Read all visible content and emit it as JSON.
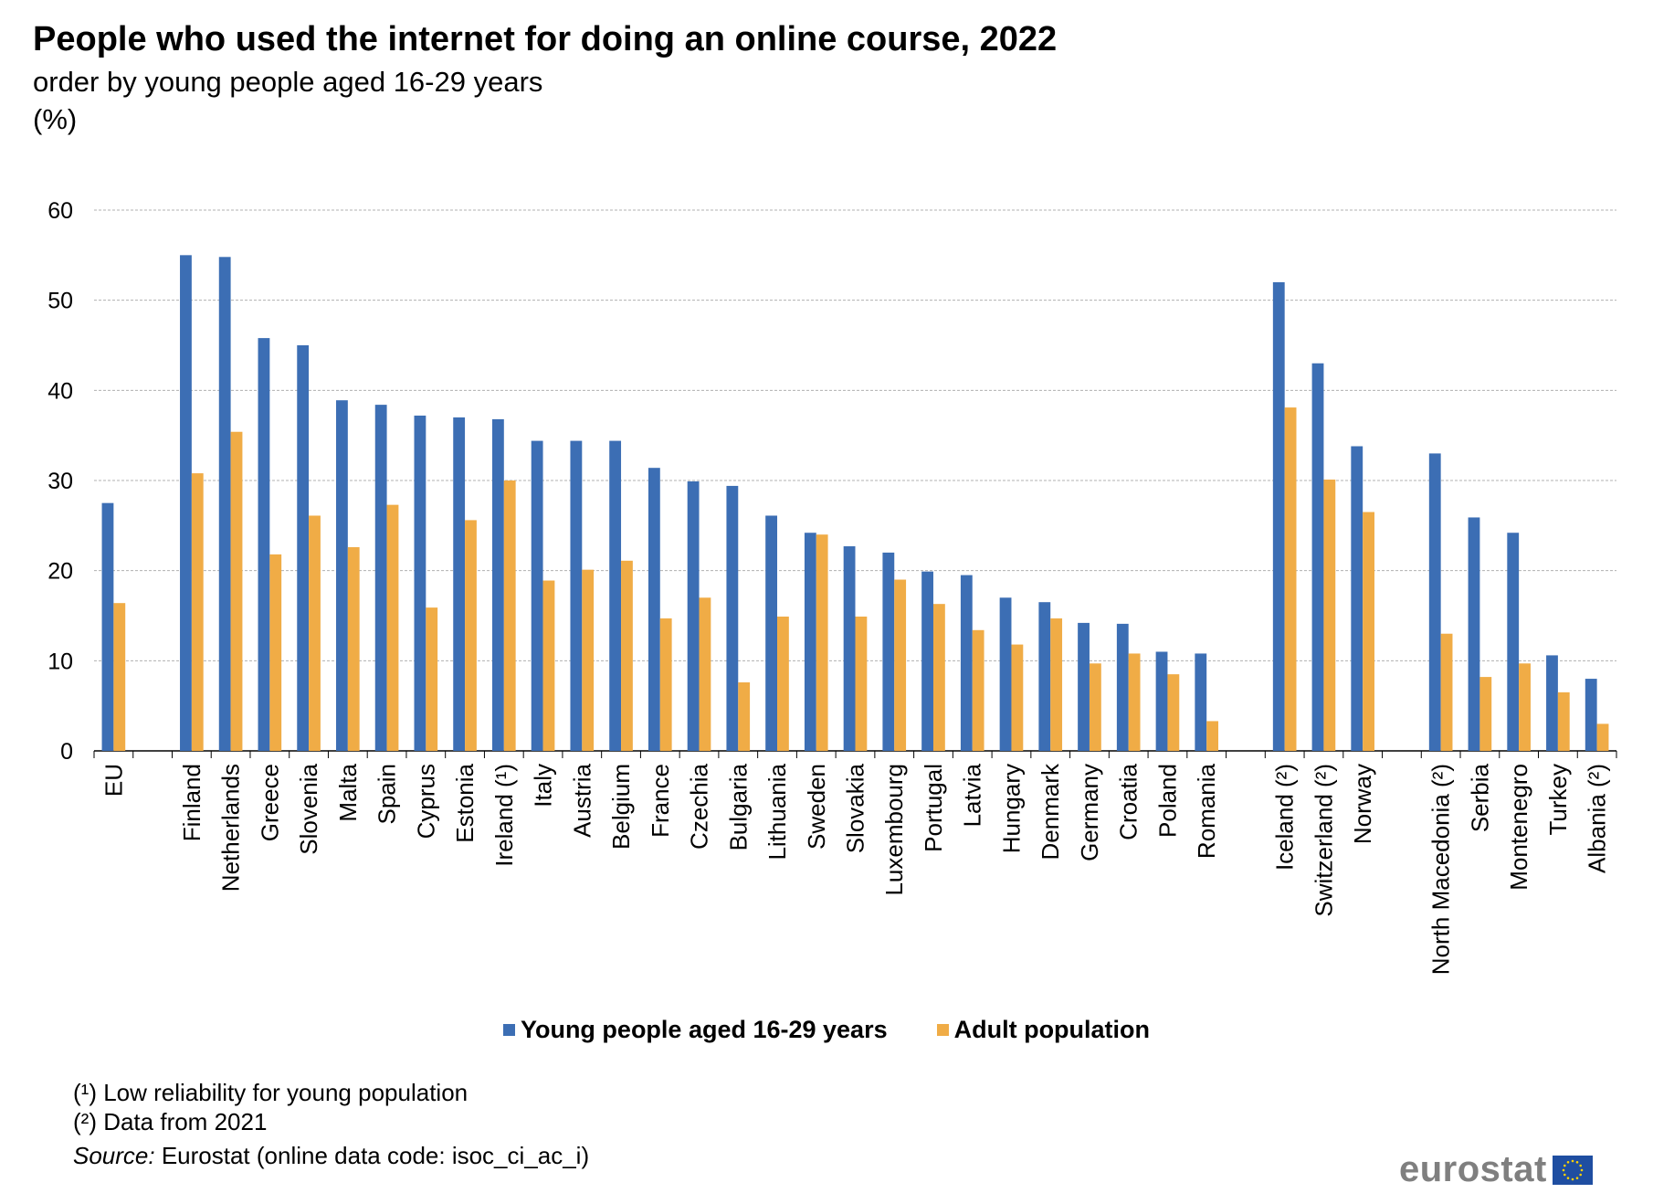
{
  "header": {
    "title": "People who used the internet for doing an online course, 2022",
    "subtitle": "order by young people aged 16-29 years",
    "unit": "(%)"
  },
  "legend": {
    "young_label": "Young people aged 16-29 years",
    "adult_label": "Adult population"
  },
  "notes": {
    "note1": "(¹) Low reliability for young population",
    "note2": "(²) Data from 2021"
  },
  "source": {
    "label": "Source:",
    "text": " Eurostat (online data code: isoc_ci_ac_i)"
  },
  "logo": {
    "text": "eurostat"
  },
  "colors": {
    "young": "#3c6eb4",
    "adult": "#f0ac46",
    "grid": "#b0b0b0"
  },
  "chart_data": {
    "type": "bar",
    "title": "People who used the internet for doing an online course, 2022",
    "ylim": [
      0,
      60
    ],
    "yticks": [
      0,
      10,
      20,
      30,
      40,
      50,
      60
    ],
    "grid": true,
    "legend_position": "bottom",
    "groups": [
      [
        "EU"
      ],
      [
        "Finland",
        "Netherlands",
        "Greece",
        "Slovenia",
        "Malta",
        "Spain",
        "Cyprus",
        "Estonia",
        "Ireland (¹)",
        "Italy",
        "Austria",
        "Belgium",
        "France",
        "Czechia",
        "Bulgaria",
        "Lithuania",
        "Sweden",
        "Slovakia",
        "Luxembourg",
        "Portugal",
        "Latvia",
        "Hungary",
        "Denmark",
        "Germany",
        "Croatia",
        "Poland",
        "Romania"
      ],
      [
        "Iceland (²)",
        "Switzerland (²)",
        "Norway"
      ],
      [
        "North Macedonia (²)",
        "Serbia",
        "Montenegro",
        "Turkey",
        "Albania (²)"
      ]
    ],
    "categories": [
      "EU",
      "Finland",
      "Netherlands",
      "Greece",
      "Slovenia",
      "Malta",
      "Spain",
      "Cyprus",
      "Estonia",
      "Ireland (¹)",
      "Italy",
      "Austria",
      "Belgium",
      "France",
      "Czechia",
      "Bulgaria",
      "Lithuania",
      "Sweden",
      "Slovakia",
      "Luxembourg",
      "Portugal",
      "Latvia",
      "Hungary",
      "Denmark",
      "Germany",
      "Croatia",
      "Poland",
      "Romania",
      "Iceland (²)",
      "Switzerland (²)",
      "Norway",
      "North Macedonia (²)",
      "Serbia",
      "Montenegro",
      "Turkey",
      "Albania (²)"
    ],
    "series": [
      {
        "name": "Young people aged 16-29 years",
        "values": [
          27.5,
          55,
          54.8,
          45.8,
          45,
          38.9,
          38.4,
          37.2,
          37,
          36.8,
          34.4,
          34.4,
          34.4,
          31.4,
          29.9,
          29.4,
          26.1,
          24.2,
          22.7,
          22,
          19.9,
          19.5,
          17,
          16.5,
          14.2,
          14.1,
          11,
          10.8,
          52,
          43,
          33.8,
          33,
          25.9,
          24.2,
          10.6,
          8
        ]
      },
      {
        "name": "Adult population",
        "values": [
          16.4,
          30.8,
          35.4,
          21.8,
          26.1,
          22.6,
          27.3,
          15.9,
          25.6,
          30,
          18.9,
          20.1,
          21.1,
          14.7,
          17,
          7.6,
          14.9,
          24,
          14.9,
          19,
          16.3,
          13.4,
          11.8,
          14.7,
          9.7,
          10.8,
          8.5,
          3.3,
          38.1,
          30.1,
          26.5,
          13,
          8.2,
          9.7,
          6.5,
          3
        ]
      }
    ]
  }
}
